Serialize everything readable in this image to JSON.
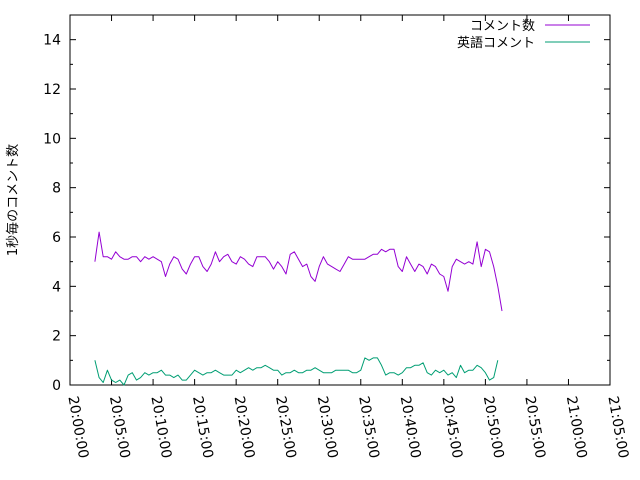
{
  "chart_data": {
    "type": "line",
    "ylabel": "1秒毎のコメント数",
    "xlabel": "",
    "ylim": [
      0,
      15
    ],
    "yticks": [
      "0",
      "2",
      "4",
      "6",
      "8",
      "10",
      "12",
      "14"
    ],
    "xlim": [
      "20:00:00",
      "21:05:00"
    ],
    "xticks": [
      "20:00:00",
      "20:05:00",
      "20:10:00",
      "20:15:00",
      "20:20:00",
      "20:25:00",
      "20:30:00",
      "20:35:00",
      "20:40:00",
      "20:45:00",
      "20:50:00",
      "20:55:00",
      "21:00:00",
      "21:05:00"
    ],
    "legend_position": "top-right",
    "grid": false,
    "x_step_seconds": 30,
    "x_start": "20:03:00",
    "series": [
      {
        "name": "コメント数",
        "color": "#9400d3",
        "values": [
          5.0,
          6.2,
          5.2,
          5.2,
          5.1,
          5.4,
          5.2,
          5.1,
          5.1,
          5.2,
          5.2,
          5.0,
          5.2,
          5.1,
          5.2,
          5.1,
          5.0,
          4.4,
          4.9,
          5.2,
          5.1,
          4.7,
          4.5,
          4.9,
          5.2,
          5.2,
          4.8,
          4.6,
          4.9,
          5.4,
          5.0,
          5.2,
          5.3,
          5.0,
          4.9,
          5.2,
          5.1,
          4.9,
          4.8,
          5.2,
          5.2,
          5.2,
          5.0,
          4.7,
          5.0,
          4.8,
          4.5,
          5.3,
          5.4,
          5.1,
          4.8,
          4.9,
          4.4,
          4.2,
          4.8,
          5.2,
          4.9,
          4.8,
          4.7,
          4.6,
          4.9,
          5.2,
          5.1,
          5.1,
          5.1,
          5.1,
          5.2,
          5.3,
          5.3,
          5.5,
          5.4,
          5.5,
          5.5,
          4.8,
          4.6,
          5.2,
          4.9,
          4.6,
          4.9,
          4.8,
          4.5,
          4.9,
          4.8,
          4.5,
          4.4,
          3.8,
          4.8,
          5.1,
          5.0,
          4.9,
          5.0,
          4.9,
          5.8,
          4.8,
          5.5,
          5.4,
          4.8,
          4.0,
          3.0
        ]
      },
      {
        "name": "英語コメント",
        "color": "#009e73",
        "values": [
          1.0,
          0.3,
          0.1,
          0.6,
          0.2,
          0.1,
          0.2,
          0.0,
          0.4,
          0.5,
          0.2,
          0.3,
          0.5,
          0.4,
          0.5,
          0.5,
          0.6,
          0.4,
          0.4,
          0.3,
          0.4,
          0.2,
          0.2,
          0.4,
          0.6,
          0.5,
          0.4,
          0.5,
          0.5,
          0.6,
          0.5,
          0.4,
          0.4,
          0.4,
          0.6,
          0.5,
          0.6,
          0.7,
          0.6,
          0.7,
          0.7,
          0.8,
          0.7,
          0.6,
          0.6,
          0.4,
          0.5,
          0.5,
          0.6,
          0.5,
          0.5,
          0.6,
          0.6,
          0.7,
          0.6,
          0.5,
          0.5,
          0.5,
          0.6,
          0.6,
          0.6,
          0.6,
          0.5,
          0.5,
          0.6,
          1.1,
          1.0,
          1.1,
          1.1,
          0.8,
          0.4,
          0.5,
          0.5,
          0.4,
          0.5,
          0.7,
          0.7,
          0.8,
          0.8,
          0.9,
          0.5,
          0.4,
          0.6,
          0.5,
          0.6,
          0.4,
          0.5,
          0.3,
          0.8,
          0.5,
          0.6,
          0.6,
          0.8,
          0.7,
          0.5,
          0.2,
          0.3,
          1.0
        ]
      }
    ]
  }
}
